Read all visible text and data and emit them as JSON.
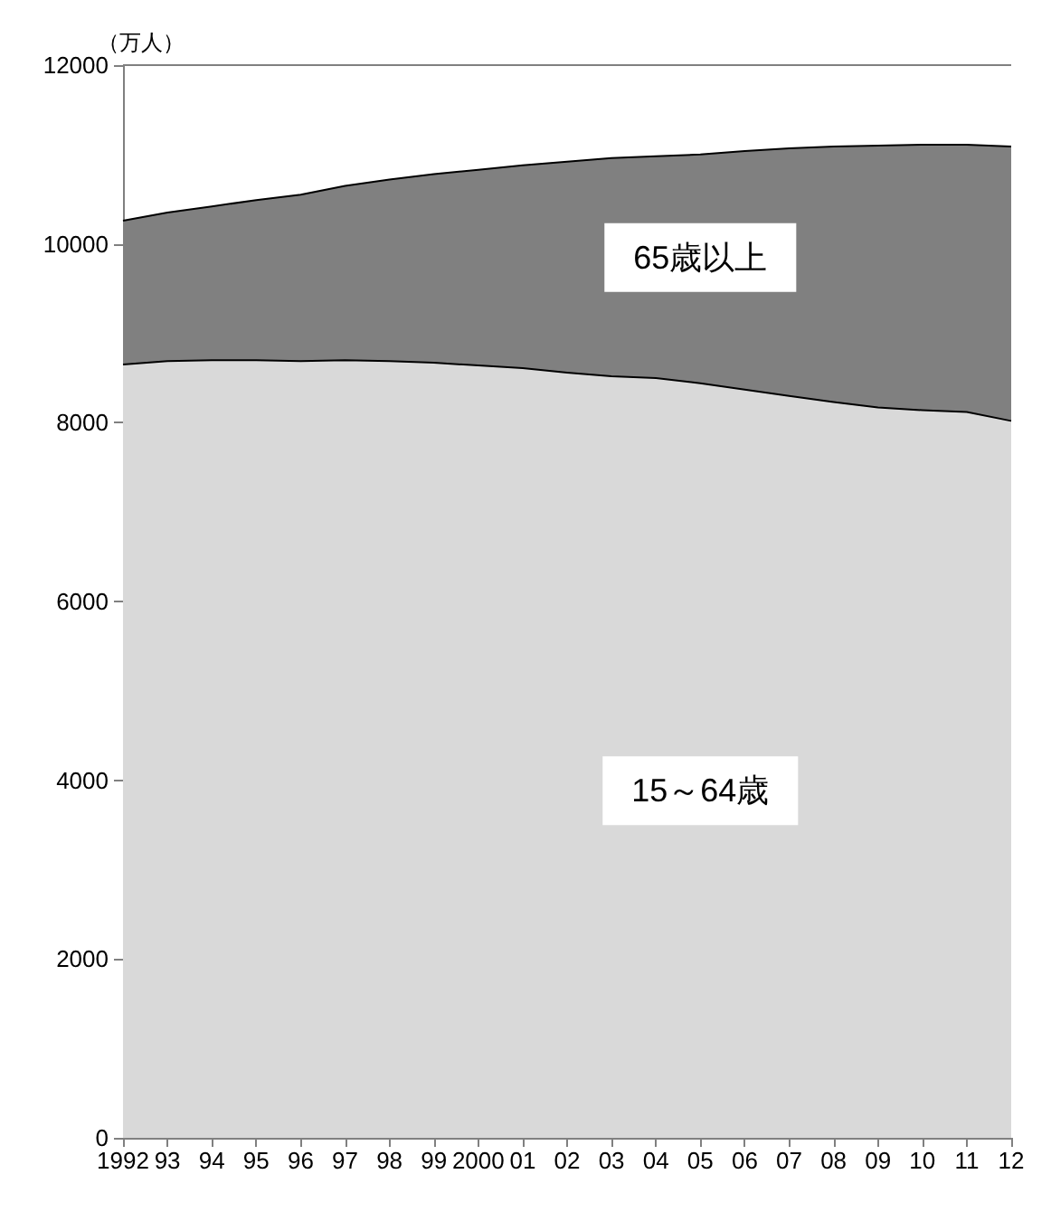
{
  "chart_data": {
    "type": "area",
    "stacked": true,
    "ylabel": "（万人）",
    "categories": [
      "1992",
      "93",
      "94",
      "95",
      "96",
      "97",
      "98",
      "99",
      "2000",
      "01",
      "02",
      "03",
      "04",
      "05",
      "06",
      "07",
      "08",
      "09",
      "10",
      "11",
      "12"
    ],
    "series": [
      {
        "name": "15～64歳",
        "color": "#d9d9d9",
        "values": [
          8650,
          8690,
          8700,
          8700,
          8690,
          8700,
          8690,
          8670,
          8640,
          8610,
          8560,
          8520,
          8500,
          8440,
          8370,
          8300,
          8230,
          8170,
          8140,
          8120,
          8020
        ]
      },
      {
        "name": "65歳以上",
        "color": "#808080",
        "values": [
          1610,
          1660,
          1720,
          1790,
          1860,
          1950,
          2030,
          2110,
          2190,
          2270,
          2360,
          2440,
          2480,
          2560,
          2670,
          2770,
          2860,
          2930,
          2970,
          2990,
          3070
        ]
      }
    ],
    "ylim": [
      0,
      12000
    ],
    "yticks": [
      0,
      2000,
      4000,
      6000,
      8000,
      10000,
      12000
    ],
    "grid": false,
    "legend": false
  }
}
